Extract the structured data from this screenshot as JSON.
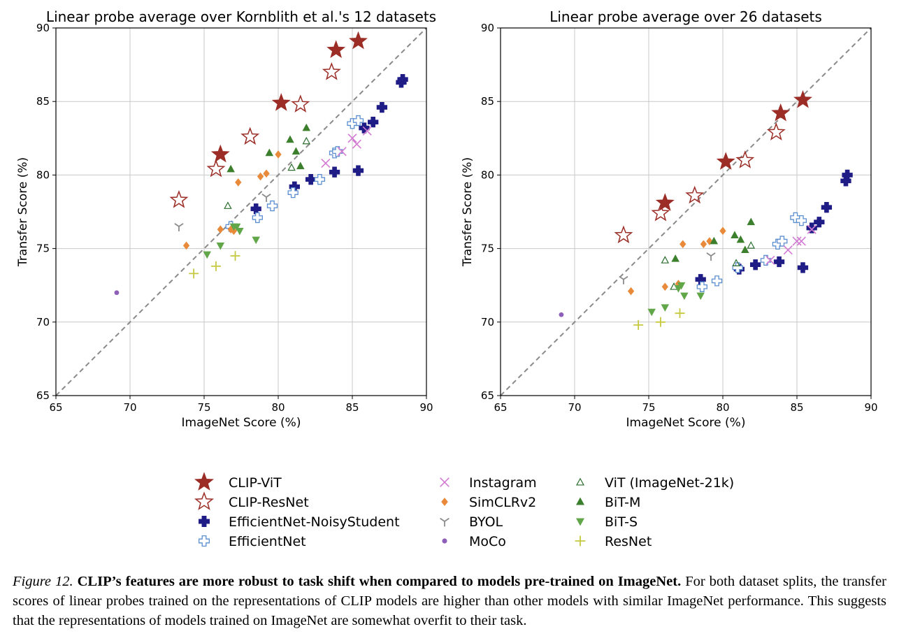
{
  "colors": {
    "clip": "#9b2d26",
    "effnet": "#1f1c86",
    "effnet_light": "#5c8fd0",
    "instagram": "#d27ad2",
    "simclr": "#e98a3a",
    "byol": "#8c8c8c",
    "moco": "#8e5fb8",
    "vit": "#2c6e2f",
    "bitm": "#3c7f2c",
    "bits": "#62a64a",
    "resnet": "#c5c940",
    "diag": "#8a8a8a",
    "grid": "#c8c8c8"
  },
  "legend": {
    "entries": [
      {
        "key": "clipvit",
        "label": "CLIP-ViT",
        "icon": "filled-star"
      },
      {
        "key": "clipres",
        "label": "CLIP-ResNet",
        "icon": "open-star"
      },
      {
        "key": "effns",
        "label": "EfficientNet-NoisyStudent",
        "icon": "filled-plus"
      },
      {
        "key": "eff",
        "label": "EfficientNet",
        "icon": "open-plus"
      },
      {
        "key": "insta",
        "label": "Instagram",
        "icon": "x-mark"
      },
      {
        "key": "simclr",
        "label": "SimCLRv2",
        "icon": "diamond"
      },
      {
        "key": "byol",
        "label": "BYOL",
        "icon": "tri-down-y"
      },
      {
        "key": "moco",
        "label": "MoCo",
        "icon": "dot"
      },
      {
        "key": "vit",
        "label": "ViT (ImageNet-21k)",
        "icon": "open-triangle"
      },
      {
        "key": "bitm",
        "label": "BiT-M",
        "icon": "triangle-up"
      },
      {
        "key": "bits",
        "label": "BiT-S",
        "icon": "triangle-down"
      },
      {
        "key": "resnet",
        "label": "ResNet",
        "icon": "thin-plus"
      }
    ]
  },
  "caption": {
    "label": "Figure 12.",
    "bold": "CLIP’s features are more robust to task shift when compared to models pre-trained on ImageNet.",
    "text": "For both dataset splits, the transfer scores of linear probes trained on the representations of CLIP models are higher than other models with similar ImageNet performance. This suggests that the representations of models trained on ImageNet are somewhat overfit to their task."
  },
  "chart_data": [
    {
      "type": "scatter",
      "title": "Linear probe average over Kornblith et al.'s 12 datasets",
      "xlabel": "ImageNet Score (%)",
      "ylabel": "Transfer Score (%)",
      "xlim": [
        65,
        90
      ],
      "ylim": [
        65,
        90
      ],
      "xticks": [
        65,
        70,
        75,
        80,
        85,
        90
      ],
      "yticks": [
        65,
        70,
        75,
        80,
        85,
        90
      ],
      "grid": true,
      "reference_line": "y = x (dashed)",
      "series": [
        {
          "name": "CLIP-ViT",
          "key": "clipvit",
          "points": [
            [
              76.1,
              81.4
            ],
            [
              80.2,
              84.9
            ],
            [
              83.9,
              88.5
            ],
            [
              85.4,
              89.1
            ]
          ]
        },
        {
          "name": "CLIP-ResNet",
          "key": "clipres",
          "points": [
            [
              73.3,
              78.3
            ],
            [
              75.8,
              80.4
            ],
            [
              78.1,
              82.6
            ],
            [
              81.5,
              84.8
            ],
            [
              83.6,
              87.0
            ]
          ]
        },
        {
          "name": "EfficientNet-NoisyStudent",
          "key": "effns",
          "points": [
            [
              78.5,
              77.7
            ],
            [
              81.1,
              79.2
            ],
            [
              82.2,
              79.7
            ],
            [
              83.8,
              80.2
            ],
            [
              85.4,
              80.3
            ],
            [
              85.8,
              83.2
            ],
            [
              86.4,
              83.6
            ],
            [
              87.0,
              84.6
            ],
            [
              88.3,
              86.3
            ],
            [
              88.4,
              86.5
            ]
          ]
        },
        {
          "name": "EfficientNet",
          "key": "eff",
          "points": [
            [
              76.8,
              76.5
            ],
            [
              78.6,
              77.1
            ],
            [
              79.6,
              77.9
            ],
            [
              81.0,
              78.8
            ],
            [
              82.8,
              79.7
            ],
            [
              83.8,
              81.5
            ],
            [
              84.0,
              81.6
            ],
            [
              85.0,
              83.5
            ],
            [
              85.4,
              83.7
            ]
          ]
        },
        {
          "name": "Instagram",
          "key": "insta",
          "points": [
            [
              83.2,
              80.8
            ],
            [
              84.3,
              81.6
            ],
            [
              85.0,
              82.5
            ],
            [
              85.3,
              82.1
            ],
            [
              86.0,
              83.0
            ]
          ]
        },
        {
          "name": "SimCLRv2",
          "key": "simclr",
          "points": [
            [
              73.8,
              75.2
            ],
            [
              76.1,
              76.3
            ],
            [
              76.8,
              76.3
            ],
            [
              77.0,
              76.2
            ],
            [
              77.3,
              79.5
            ],
            [
              78.8,
              79.9
            ],
            [
              79.2,
              80.1
            ],
            [
              80.0,
              81.4
            ]
          ]
        },
        {
          "name": "BYOL",
          "key": "byol",
          "points": [
            [
              73.3,
              76.5
            ],
            [
              79.2,
              78.5
            ]
          ]
        },
        {
          "name": "MoCo",
          "key": "moco",
          "points": [
            [
              69.1,
              72.0
            ]
          ]
        },
        {
          "name": "ViT (ImageNet-21k)",
          "key": "vit",
          "points": [
            [
              76.6,
              77.9
            ],
            [
              80.9,
              80.5
            ],
            [
              81.9,
              82.3
            ]
          ]
        },
        {
          "name": "BiT-M",
          "key": "bitm",
          "points": [
            [
              76.8,
              80.4
            ],
            [
              79.4,
              81.5
            ],
            [
              80.8,
              82.4
            ],
            [
              81.2,
              81.6
            ],
            [
              81.5,
              80.6
            ],
            [
              81.9,
              83.2
            ]
          ]
        },
        {
          "name": "BiT-S",
          "key": "bits",
          "points": [
            [
              75.2,
              74.6
            ],
            [
              76.1,
              75.2
            ],
            [
              77.0,
              76.5
            ],
            [
              77.2,
              76.5
            ],
            [
              77.4,
              76.2
            ],
            [
              78.5,
              75.6
            ]
          ]
        },
        {
          "name": "ResNet",
          "key": "resnet",
          "points": [
            [
              74.3,
              73.3
            ],
            [
              75.8,
              73.8
            ],
            [
              77.1,
              74.5
            ]
          ]
        }
      ]
    },
    {
      "type": "scatter",
      "title": "Linear probe average over 26 datasets",
      "xlabel": "ImageNet Score (%)",
      "ylabel": "Transfer Score (%)",
      "xlim": [
        65,
        90
      ],
      "ylim": [
        65,
        90
      ],
      "xticks": [
        65,
        70,
        75,
        80,
        85,
        90
      ],
      "yticks": [
        65,
        70,
        75,
        80,
        85,
        90
      ],
      "grid": true,
      "reference_line": "y = x (dashed)",
      "series": [
        {
          "name": "CLIP-ViT",
          "key": "clipvit",
          "points": [
            [
              76.1,
              78.1
            ],
            [
              80.2,
              80.9
            ],
            [
              83.9,
              84.2
            ],
            [
              85.4,
              85.1
            ]
          ]
        },
        {
          "name": "CLIP-ResNet",
          "key": "clipres",
          "points": [
            [
              73.3,
              75.9
            ],
            [
              75.8,
              77.4
            ],
            [
              78.1,
              78.6
            ],
            [
              81.5,
              81.0
            ],
            [
              83.6,
              82.9
            ]
          ]
        },
        {
          "name": "EfficientNet-NoisyStudent",
          "key": "effns",
          "points": [
            [
              78.5,
              72.9
            ],
            [
              81.1,
              73.6
            ],
            [
              82.2,
              73.9
            ],
            [
              83.8,
              74.1
            ],
            [
              85.4,
              73.7
            ],
            [
              86.0,
              76.4
            ],
            [
              86.5,
              76.8
            ],
            [
              87.0,
              77.8
            ],
            [
              88.3,
              79.6
            ],
            [
              88.4,
              80.0
            ]
          ]
        },
        {
          "name": "EfficientNet",
          "key": "eff",
          "points": [
            [
              78.6,
              72.4
            ],
            [
              79.6,
              72.8
            ],
            [
              81.0,
              73.7
            ],
            [
              82.9,
              74.2
            ],
            [
              83.7,
              75.3
            ],
            [
              84.0,
              75.5
            ],
            [
              84.9,
              77.1
            ],
            [
              85.3,
              76.9
            ]
          ]
        },
        {
          "name": "Instagram",
          "key": "insta",
          "points": [
            [
              83.2,
              74.2
            ],
            [
              84.4,
              74.9
            ],
            [
              85.0,
              75.5
            ],
            [
              85.3,
              75.5
            ],
            [
              86.0,
              76.3
            ]
          ]
        },
        {
          "name": "SimCLRv2",
          "key": "simclr",
          "points": [
            [
              73.8,
              72.1
            ],
            [
              76.1,
              72.4
            ],
            [
              77.0,
              72.6
            ],
            [
              77.3,
              75.3
            ],
            [
              78.7,
              75.3
            ],
            [
              79.1,
              75.5
            ],
            [
              80.0,
              76.2
            ]
          ]
        },
        {
          "name": "BYOL",
          "key": "byol",
          "points": [
            [
              73.3,
              72.9
            ],
            [
              79.2,
              74.5
            ]
          ]
        },
        {
          "name": "MoCo",
          "key": "moco",
          "points": [
            [
              69.1,
              70.5
            ]
          ]
        },
        {
          "name": "ViT (ImageNet-21k)",
          "key": "vit",
          "points": [
            [
              76.1,
              74.2
            ],
            [
              76.7,
              72.4
            ],
            [
              80.9,
              74.0
            ],
            [
              81.9,
              75.2
            ]
          ]
        },
        {
          "name": "BiT-M",
          "key": "bitm",
          "points": [
            [
              76.8,
              74.3
            ],
            [
              79.4,
              75.5
            ],
            [
              80.8,
              75.9
            ],
            [
              81.2,
              75.6
            ],
            [
              81.5,
              74.9
            ],
            [
              81.9,
              76.8
            ]
          ]
        },
        {
          "name": "BiT-S",
          "key": "bits",
          "points": [
            [
              75.2,
              70.7
            ],
            [
              76.1,
              71.0
            ],
            [
              77.0,
              72.3
            ],
            [
              77.2,
              72.5
            ],
            [
              77.4,
              71.8
            ],
            [
              78.5,
              71.8
            ]
          ]
        },
        {
          "name": "ResNet",
          "key": "resnet",
          "points": [
            [
              74.3,
              69.8
            ],
            [
              75.8,
              70.0
            ],
            [
              77.1,
              70.6
            ]
          ]
        }
      ]
    }
  ]
}
